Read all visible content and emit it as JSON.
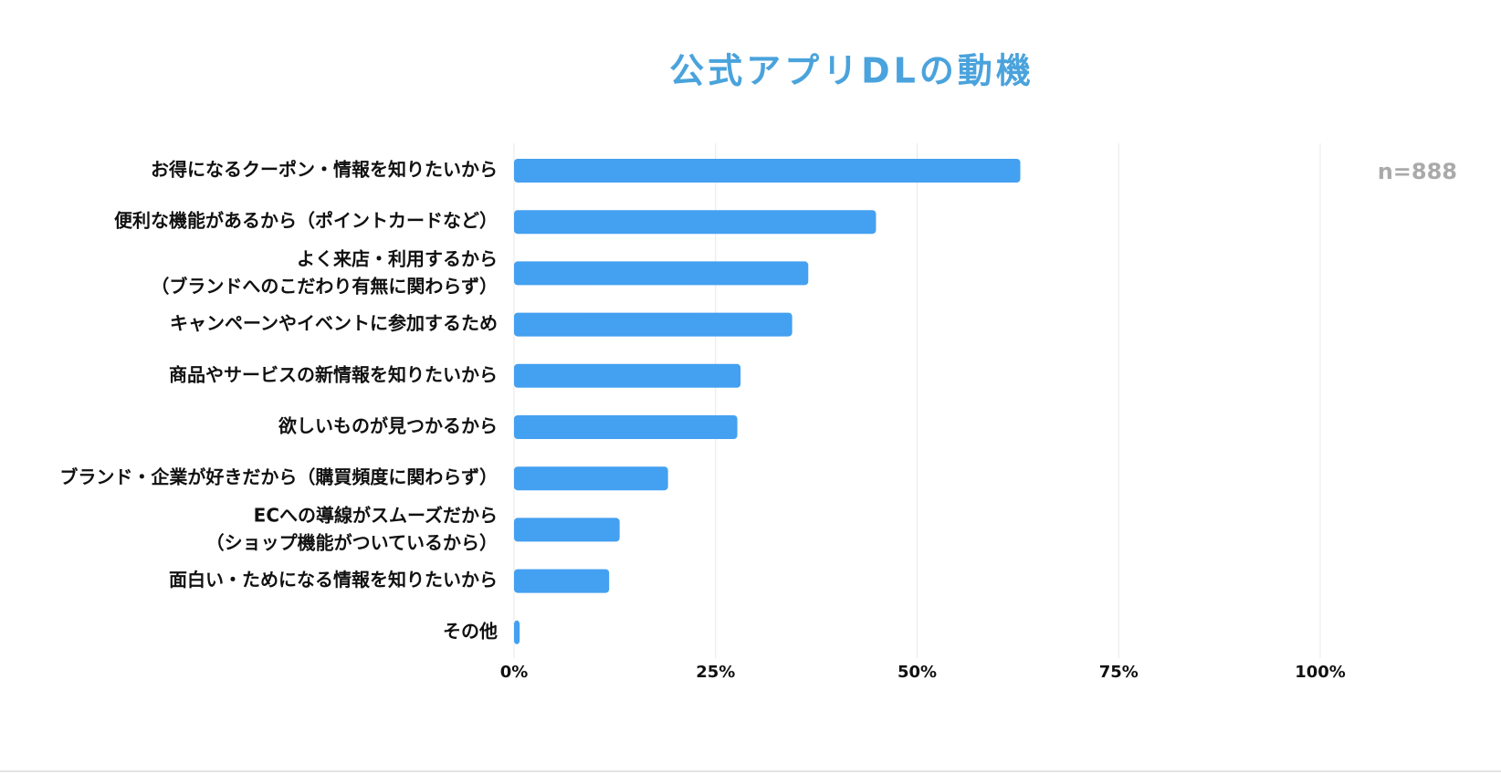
{
  "chart_data": {
    "type": "barh",
    "title": "公式アプリDLの動機",
    "annotation": "n=888",
    "categories": [
      "お得になるクーポン・情報を知りたいから",
      "便利な機能があるから（ポイントカードなど）",
      "よく来店・利用するから\n（ブランドへのこだわり有無に関わらず）",
      "キャンペーンやイベントに参加するため",
      "商品やサービスの新情報を知りたいから",
      "欲しいものが見つかるから",
      "ブランド・企業が好きだから（購買頻度に関わらず）",
      "ECへの導線がスムーズだから\n（ショップ機能がついているから）",
      "面白い・ためになる情報を知りたいから",
      "その他"
    ],
    "values": [
      62.8,
      44.9,
      36.5,
      34.5,
      28.1,
      27.7,
      19.1,
      13.1,
      11.8,
      0.7
    ],
    "color": "#44a0f0",
    "title_color": "#4aa3dc",
    "xlim": [
      0,
      100
    ],
    "xticks": [
      {
        "value": 0,
        "label": "0%"
      },
      {
        "value": 25,
        "label": "25%"
      },
      {
        "value": 50,
        "label": "50%"
      },
      {
        "value": 75,
        "label": "75%"
      },
      {
        "value": 100,
        "label": "100%"
      }
    ],
    "grid": true
  }
}
